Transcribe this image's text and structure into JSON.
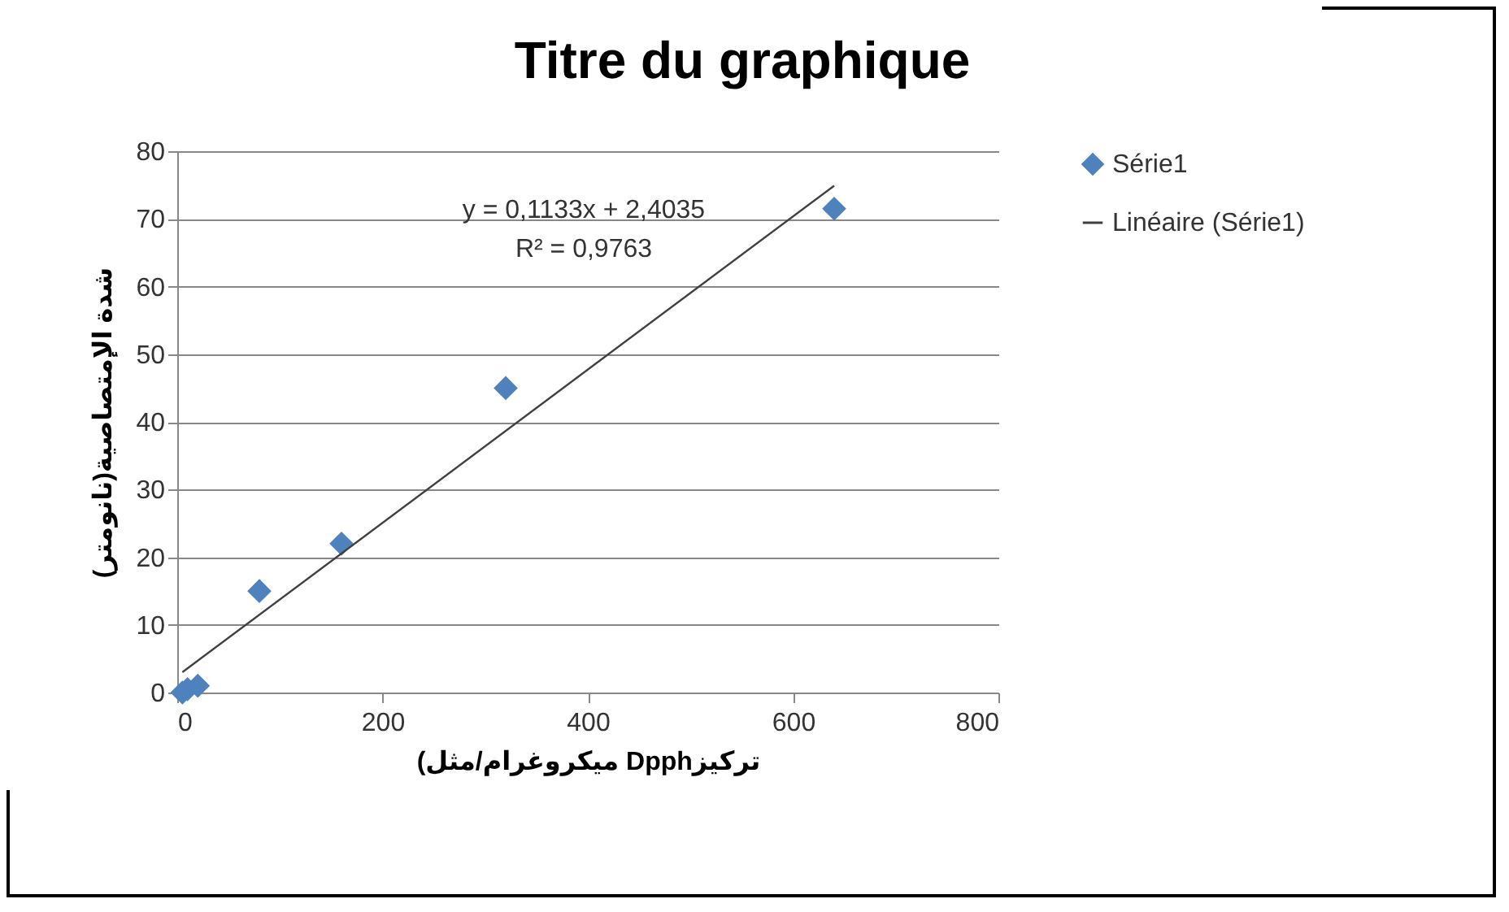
{
  "chart_data": {
    "type": "scatter",
    "title": "Titre du graphique",
    "xlabel": "(ميكروغرام/مثل Dpphتركيز",
    "ylabel": "شدة الإمتصاصية(نانومتر)",
    "xlim": [
      0,
      800
    ],
    "xticks": [
      0,
      200,
      400,
      600,
      800
    ],
    "ylim": [
      0,
      80
    ],
    "yticks": [
      0,
      10,
      20,
      30,
      40,
      50,
      60,
      70,
      80
    ],
    "grid": "y",
    "legend": "right",
    "series": [
      {
        "name": "Série1",
        "marker": "diamond",
        "color": "#4f81bd",
        "x": [
          5,
          10,
          20,
          80,
          160,
          320,
          640
        ],
        "values": [
          0,
          0.5,
          1,
          15,
          22,
          45,
          71.5
        ]
      },
      {
        "name": "Linéaire (Série1)",
        "type": "line",
        "color": "#404040",
        "x": [
          5,
          640
        ],
        "values": [
          3.0,
          74.9
        ]
      }
    ],
    "annotations": [
      "y = 0,1133x + 2,4035",
      "R² = 0,9763"
    ]
  }
}
